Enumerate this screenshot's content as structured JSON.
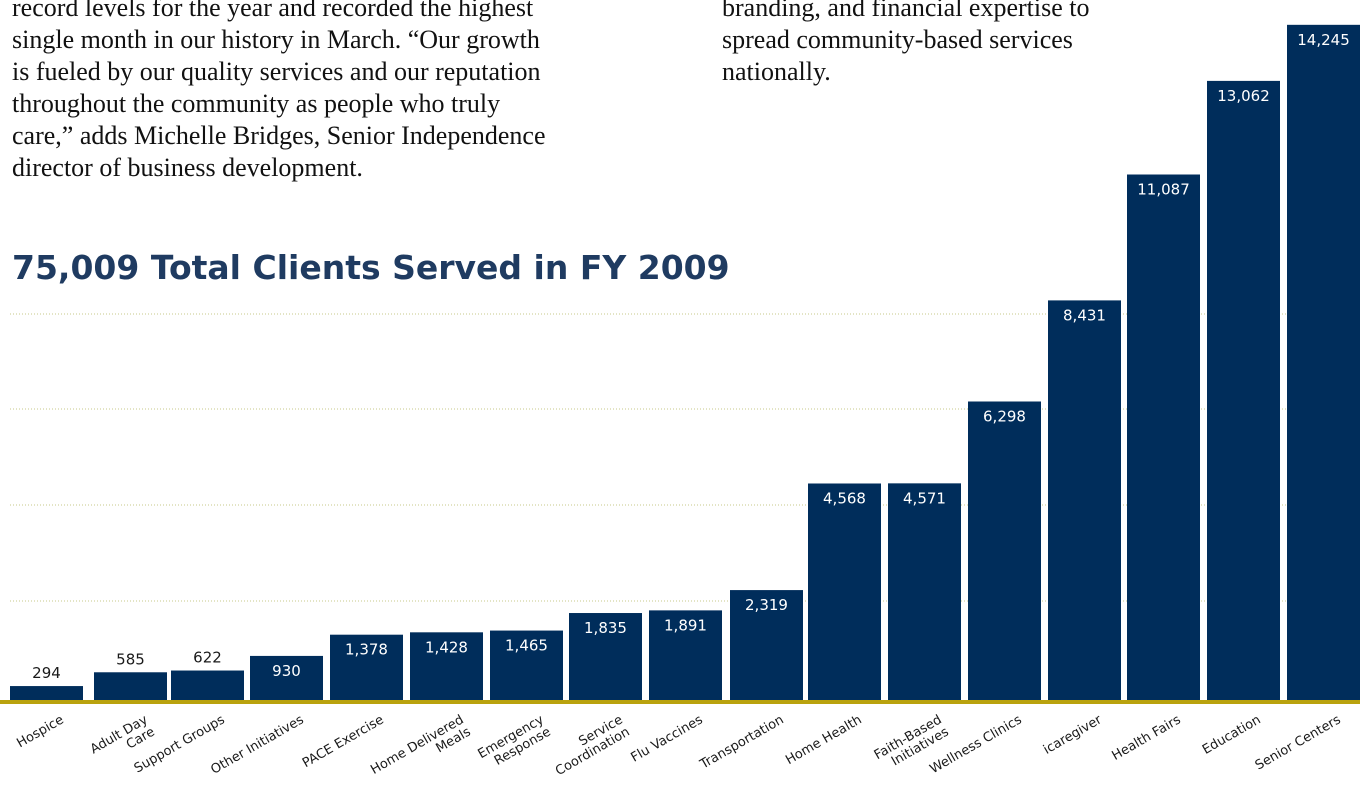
{
  "article": {
    "left_paragraph": "record levels for the year and recorded the highest\nsingle month in our history in March. “Our growth\nis fueled by our quality services and our reputation\nthroughout the community as people who truly\ncare,” adds Michelle Bridges, Senior Independence\ndirector of business development.",
    "right_paragraph": "branding, and financial expertise to\nspread community-based services\nnationally."
  },
  "chart_data": {
    "type": "bar",
    "title": "75,009 Total Clients Served in FY 2009",
    "categories": [
      "Hospice",
      "Adult Day\nCare",
      "Support Groups",
      "Other Initiatives",
      "PACE Exercise",
      "Home Delivered\nMeals",
      "Emergency\nResponse",
      "Service\nCoordination",
      "Flu Vaccines",
      "Transportation",
      "Home Health",
      "Faith-Based\nInitiatives",
      "Wellness Clinics",
      "icaregiver",
      "Health Fairs",
      "Education",
      "Senior Centers"
    ],
    "values": [
      294,
      585,
      622,
      930,
      1378,
      1428,
      1465,
      1835,
      1891,
      2319,
      4568,
      4571,
      6298,
      8431,
      11087,
      13062,
      14245
    ],
    "value_labels": [
      "294",
      "585",
      "622",
      "930",
      "1,378",
      "1,428",
      "1,465",
      "1,835",
      "1,891",
      "2,319",
      "4,568",
      "4,571",
      "6,298",
      "8,431",
      "11,087",
      "13,062",
      "14,245"
    ],
    "ylim": [
      0,
      14600
    ],
    "grid": true,
    "colors": {
      "bar": "#002d5b",
      "baseline": "#b9a20e",
      "grid": "#c7c98a",
      "title": "#1f3b61",
      "label_outside": "#1a1a1a",
      "label_inside": "#ffffff"
    }
  }
}
